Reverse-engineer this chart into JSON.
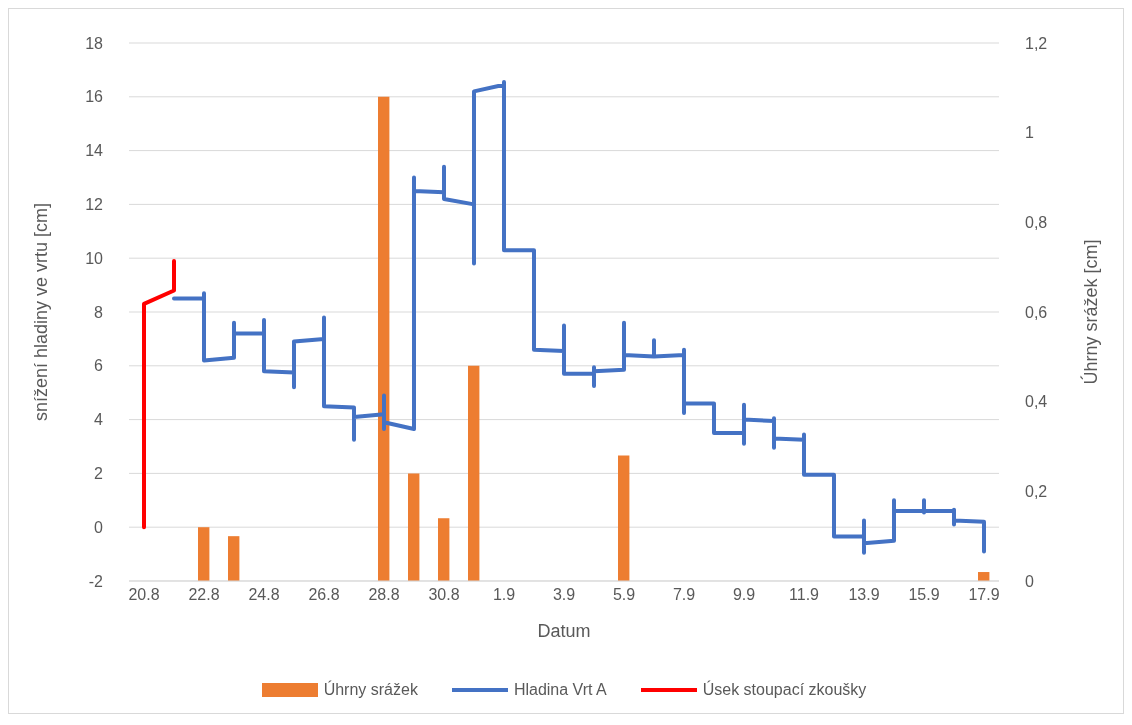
{
  "chart_data": {
    "type": "line",
    "xlabel": "Datum",
    "ylabel": "snížení hladiny ve vrtu [cm]",
    "y2label": "Úhrny srážek [cm]",
    "xlim": [
      "--08-19T12:00",
      "--09-17T12:00"
    ],
    "xticks": [
      {
        "value": "--08-20",
        "label": "20.8"
      },
      {
        "value": "--08-22",
        "label": "22.8"
      },
      {
        "value": "--08-24",
        "label": "24.8"
      },
      {
        "value": "--08-26",
        "label": "26.8"
      },
      {
        "value": "--08-28",
        "label": "28.8"
      },
      {
        "value": "--08-30",
        "label": "30.8"
      },
      {
        "value": "--09-01",
        "label": "1.9"
      },
      {
        "value": "--09-03",
        "label": "3.9"
      },
      {
        "value": "--09-05",
        "label": "5.9"
      },
      {
        "value": "--09-07",
        "label": "7.9"
      },
      {
        "value": "--09-09",
        "label": "9.9"
      },
      {
        "value": "--09-11",
        "label": "11.9"
      },
      {
        "value": "--09-13",
        "label": "13.9"
      },
      {
        "value": "--09-15",
        "label": "15.9"
      },
      {
        "value": "--09-17",
        "label": "17.9"
      }
    ],
    "ylim": [
      -2,
      18
    ],
    "yticks": [
      -2,
      0,
      2,
      4,
      6,
      8,
      10,
      12,
      14,
      16,
      18
    ],
    "y2lim": [
      0,
      1.2
    ],
    "y2ticks": [
      0,
      {
        "value": 0.2,
        "label": "0,2"
      },
      {
        "value": 0.4,
        "label": "0,4"
      },
      {
        "value": 0.6,
        "label": "0,6"
      },
      {
        "value": 0.8,
        "label": "0,8"
      },
      1,
      {
        "value": 1.2,
        "label": "1,2"
      }
    ],
    "grid": "y",
    "legend": "bottom",
    "series": [
      {
        "name": "Úhrny srážek",
        "type": "bar",
        "axis": "y2",
        "color": "#ed7d31",
        "x": [
          "--08-22",
          "--08-23",
          "--08-28",
          "--08-29",
          "--08-30",
          "--08-31",
          "--09-05",
          "--09-17"
        ],
        "values": [
          0.12,
          0.1,
          1.08,
          0.24,
          0.14,
          0.48,
          0.28,
          0.02
        ]
      },
      {
        "name": "Hladina Vrt A",
        "color": "#4472c4",
        "x": [
          "--08-21",
          "--08-22",
          "--08-22",
          "--08-22",
          "--08-23",
          "--08-23",
          "--08-23",
          "--08-24",
          "--08-24",
          "--08-24",
          "--08-25",
          "--08-25",
          "--08-25",
          "--08-26",
          "--08-26",
          "--08-26",
          "--08-27",
          "--08-27",
          "--08-27",
          "--08-28",
          "--08-28",
          "--08-28",
          "--08-28",
          "--08-29",
          "--08-29",
          "--08-29",
          "--08-30",
          "--08-30",
          "--08-30",
          "--08-31",
          "--08-31",
          "--08-31",
          "--09-01",
          "--09-01",
          "--09-01",
          "--09-02",
          "--09-02",
          "--09-03",
          "--09-03",
          "--09-03",
          "--09-04",
          "--09-04",
          "--09-04",
          "--09-04",
          "--09-05",
          "--09-05",
          "--09-05",
          "--09-06",
          "--09-06",
          "--09-06",
          "--09-07",
          "--09-07",
          "--09-07",
          "--09-07",
          "--09-08",
          "--09-08",
          "--09-09",
          "--09-09",
          "--09-09",
          "--09-09",
          "--09-10",
          "--09-10",
          "--09-10",
          "--09-10",
          "--09-11",
          "--09-11",
          "--09-11",
          "--09-12",
          "--09-12",
          "--09-13",
          "--09-13",
          "--09-13",
          "--09-13",
          "--09-14",
          "--09-14",
          "--09-14",
          "--09-15",
          "--09-15",
          "--09-15",
          "--09-15",
          "--09-16",
          "--09-16",
          "--09-16",
          "--09-16",
          "--09-17",
          "--09-17"
        ],
        "values": [
          8.5,
          8.5,
          8.7,
          6.2,
          6.3,
          7.6,
          7.2,
          7.2,
          7.7,
          5.8,
          5.75,
          5.2,
          6.9,
          7.0,
          7.8,
          4.5,
          4.45,
          3.25,
          4.1,
          4.2,
          4.9,
          3.65,
          3.9,
          3.65,
          13.0,
          12.5,
          12.45,
          13.4,
          12.2,
          12.0,
          9.8,
          16.2,
          16.45,
          16.55,
          10.3,
          10.3,
          6.6,
          6.55,
          7.5,
          5.7,
          5.7,
          5.95,
          5.25,
          5.8,
          5.85,
          7.6,
          6.4,
          6.35,
          6.95,
          6.35,
          6.4,
          6.6,
          4.25,
          4.6,
          4.6,
          3.5,
          3.5,
          4.55,
          3.1,
          4.0,
          3.95,
          4.05,
          2.95,
          3.3,
          3.25,
          3.45,
          1.95,
          1.95,
          -0.35,
          -0.35,
          0.25,
          -0.95,
          -0.6,
          -0.5,
          1.0,
          0.6,
          0.6,
          1.0,
          0.55,
          0.6,
          0.6,
          0.65,
          0.1,
          0.25,
          0.2,
          -0.9
        ]
      },
      {
        "name": "Úsek stoupací zkoušky",
        "color": "#ff0000",
        "x": [
          "--08-20",
          "--08-20",
          "--08-21",
          "--08-21"
        ],
        "values": [
          0,
          8.3,
          8.8,
          9.9
        ]
      }
    ]
  }
}
